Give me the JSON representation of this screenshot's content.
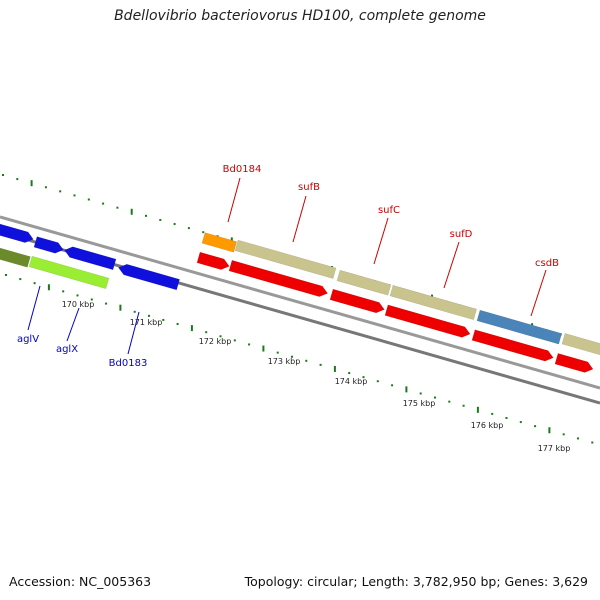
{
  "title": "Bdellovibrio bacteriovorus HD100, complete genome",
  "footer": {
    "accession": "Accession: NC_005363",
    "summary": "Topology: circular; Length: 3,782,950 bp; Genes: 3,629"
  },
  "colors": {
    "backbone": "#888888",
    "tick": "#1a7a1a",
    "blue_gene": "#1010dd",
    "red_gene": "#ee0000",
    "khaki_gene": "#c9c48e",
    "steelblue_gene": "#4a84b8",
    "orange_gene": "#ff9900",
    "olive_gene": "#6b8a2a",
    "lime_gene": "#99ee33",
    "red_label": "#cc0000",
    "blue_label": "#0000cc"
  },
  "scale": {
    "unit": "kbp",
    "labels": [
      "170 kbp",
      "171 kbp",
      "172 kbp",
      "173 kbp",
      "174 kbp",
      "175 kbp",
      "176 kbp",
      "177 kbp"
    ]
  },
  "gene_labels_top": [
    "Bd0184",
    "sufB",
    "sufC",
    "sufD",
    "csdB"
  ],
  "gene_labels_bottom": [
    "aglV",
    "aglX",
    "Bd0183"
  ]
}
